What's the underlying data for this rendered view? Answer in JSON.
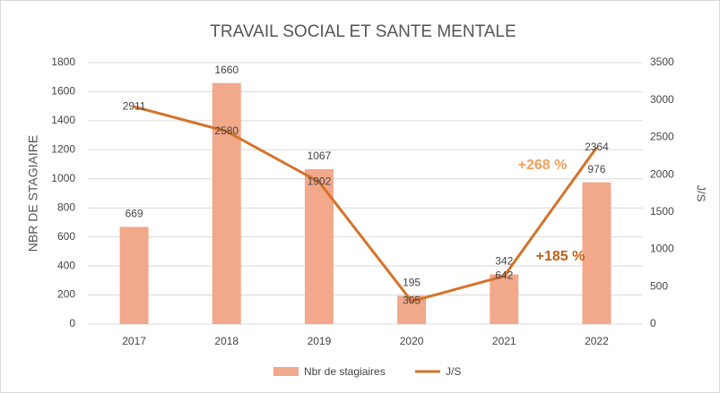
{
  "chart_data": {
    "type": "bar-line",
    "title": "TRAVAIL SOCIAL ET SANTE MENTALE",
    "y_label": "NBR DE STAGIAIRE",
    "y2_label": "J/S",
    "categories": [
      "2017",
      "2018",
      "2019",
      "2020",
      "2021",
      "2022"
    ],
    "series": [
      {
        "name": "Nbr de stagiaires",
        "type": "bar",
        "color": "#f2a88a",
        "values": [
          669,
          1660,
          1067,
          195,
          342,
          976
        ]
      },
      {
        "name": "J/S",
        "type": "line",
        "axis": "y2",
        "color": "#d4732a",
        "values": [
          2911,
          2580,
          1902,
          305,
          642,
          2364
        ]
      }
    ],
    "ylim": [
      0,
      1800
    ],
    "yticks": [
      0,
      200,
      400,
      600,
      800,
      1000,
      1200,
      1400,
      1600,
      1800
    ],
    "y2lim": [
      0,
      3500
    ],
    "y2ticks": [
      0,
      500,
      1000,
      1500,
      2000,
      2500,
      3000,
      3500
    ],
    "grid": true,
    "legend": "bottom",
    "annotations": [
      {
        "text": "+268 %",
        "color": "#f5a05a"
      },
      {
        "text": "+185 %",
        "color": "#c0601a"
      }
    ]
  }
}
